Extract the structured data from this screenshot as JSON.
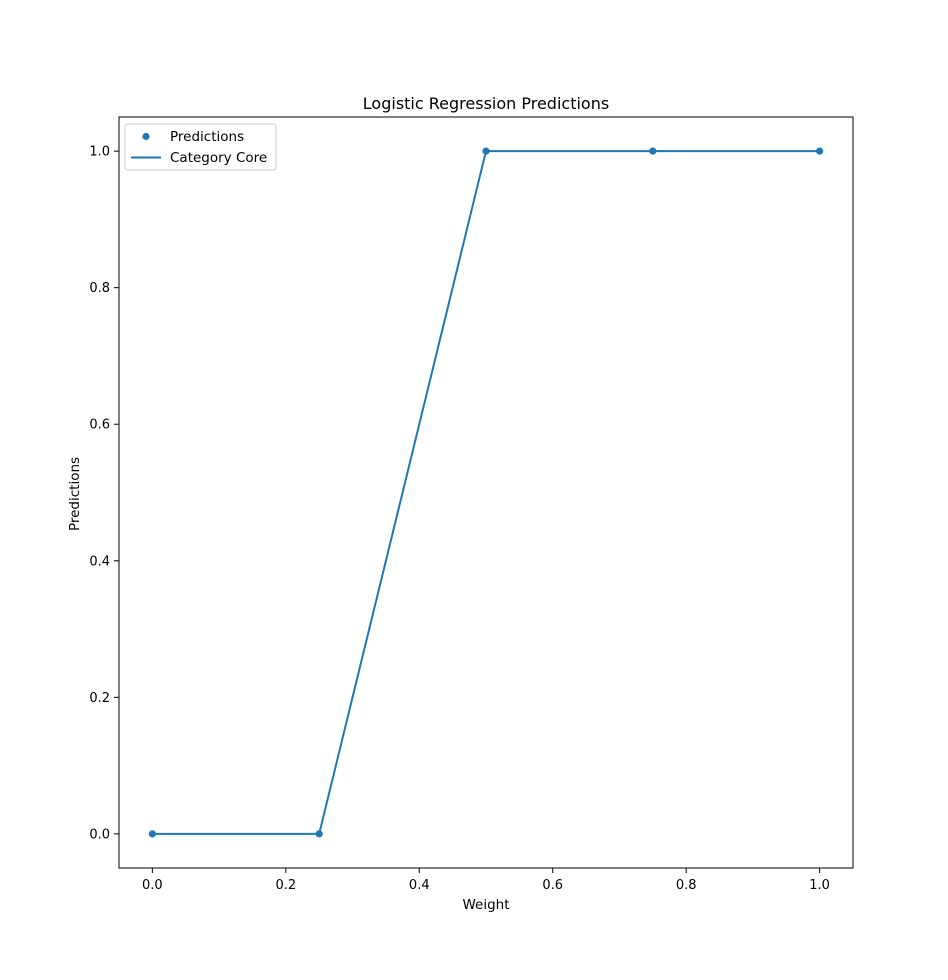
{
  "chart_data": {
    "type": "line",
    "title": "Logistic Regression Predictions",
    "xlabel": "Weight",
    "ylabel": "Predictions",
    "xlim": [
      -0.05,
      1.05
    ],
    "ylim": [
      -0.05,
      1.05
    ],
    "x_ticks": [
      0.0,
      0.2,
      0.4,
      0.6,
      0.8,
      1.0
    ],
    "x_tick_labels": [
      "0.0",
      "0.2",
      "0.4",
      "0.6",
      "0.8",
      "1.0"
    ],
    "y_ticks": [
      0.0,
      0.2,
      0.4,
      0.6,
      0.8,
      1.0
    ],
    "y_tick_labels": [
      "0.0",
      "0.2",
      "0.4",
      "0.6",
      "0.8",
      "1.0"
    ],
    "grid": false,
    "legend_position": "top-left",
    "series": [
      {
        "name": "Predictions",
        "kind": "scatter",
        "color": "#1f77b4",
        "x": [
          0.0,
          0.25,
          0.5,
          0.75,
          1.0
        ],
        "y": [
          0,
          0,
          1,
          1,
          1
        ]
      },
      {
        "name": "Category Core",
        "kind": "line",
        "color": "#1f77b4",
        "x": [
          0.0,
          0.25,
          0.5,
          0.75,
          1.0
        ],
        "y": [
          0,
          0,
          1,
          1,
          1
        ]
      }
    ]
  }
}
